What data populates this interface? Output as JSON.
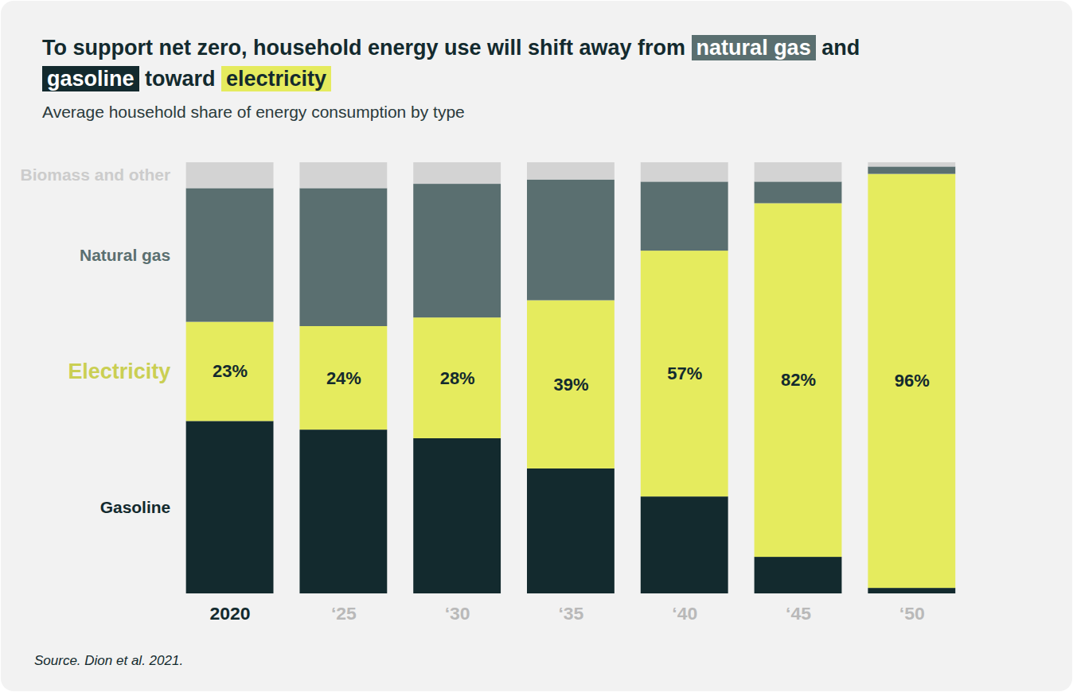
{
  "chart_data": {
    "type": "bar",
    "stacked": true,
    "title": "To support net zero, household energy use will shift away from natural gas and gasoline toward electricity",
    "subtitle": "Average household share of energy consumption by type",
    "source": "Source. Dion et al. 2021.",
    "categories": [
      "2020",
      "‘25",
      "‘30",
      "‘35",
      "‘40",
      "‘45",
      "‘50"
    ],
    "ylim": [
      0,
      100
    ],
    "tick_labels": "x",
    "series": [
      {
        "name": "Gasoline",
        "color": "#132a2e",
        "values": [
          40,
          38,
          36,
          29,
          22.5,
          8.5,
          1.3
        ]
      },
      {
        "name": "Electricity",
        "color": "#e5eb5e",
        "values": [
          23,
          24,
          28,
          39,
          57,
          82,
          96
        ],
        "value_labels": [
          "23%",
          "24%",
          "28%",
          "39%",
          "57%",
          "82%",
          "96%"
        ],
        "data_labels": true
      },
      {
        "name": "Natural gas",
        "color": "#5a6f70",
        "values": [
          31,
          32,
          31,
          28,
          16,
          5,
          1.7
        ]
      },
      {
        "name": "Biomass and other",
        "color": "#d3d3d3",
        "values": [
          6,
          6,
          5,
          4,
          4.5,
          4.5,
          1
        ]
      }
    ]
  }
}
